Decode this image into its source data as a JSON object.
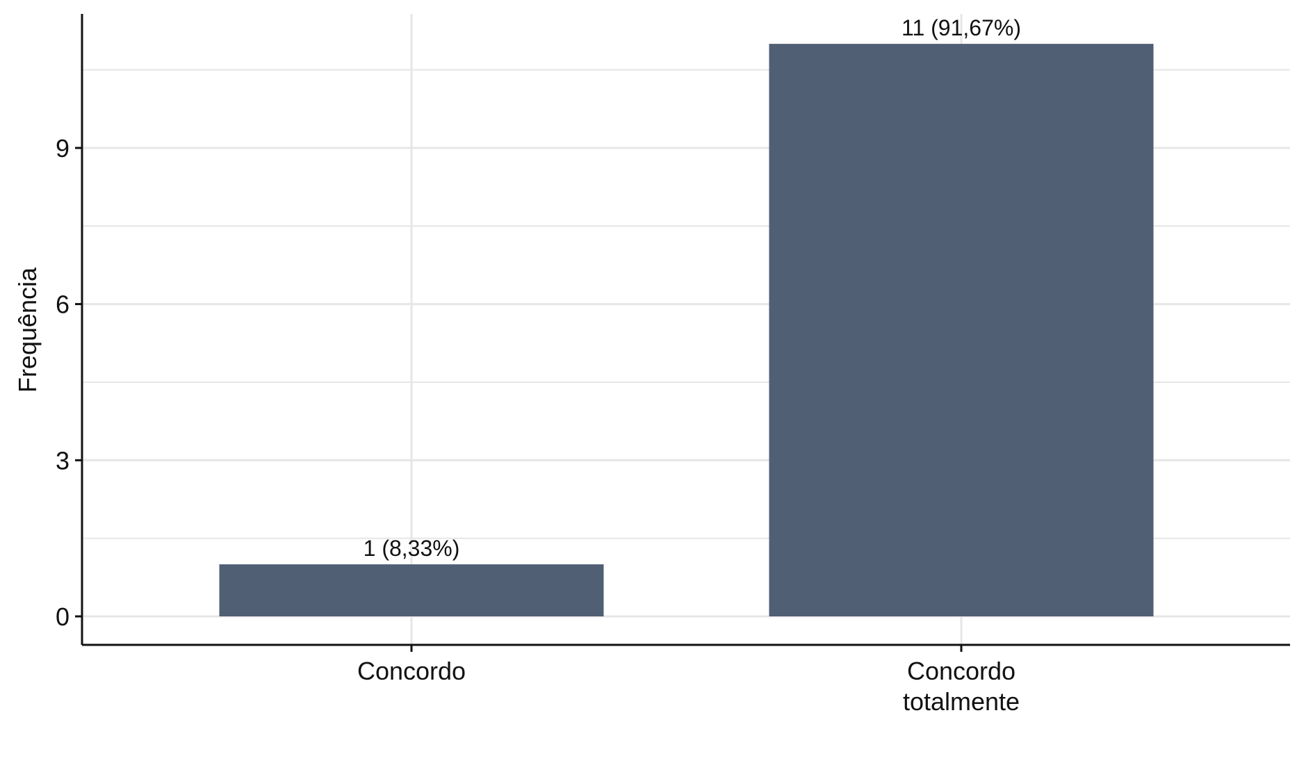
{
  "chart_data": {
    "type": "bar",
    "categories": [
      "Concordo",
      "Concordo totalmente"
    ],
    "category_lines": [
      [
        "Concordo"
      ],
      [
        "Concordo",
        "totalmente"
      ]
    ],
    "values": [
      1,
      11
    ],
    "data_labels": [
      "1 (8,33%)",
      "11 (91,67%)"
    ],
    "ylabel": "Frequência",
    "xlabel": "",
    "title": "",
    "ylim": [
      0,
      11.55
    ],
    "yticks": [
      0,
      3,
      6,
      9
    ],
    "grid": true,
    "legend": "none",
    "colors": {
      "bar": "#505F74",
      "grid": "#E6E6E6",
      "axis": "#111111"
    }
  }
}
